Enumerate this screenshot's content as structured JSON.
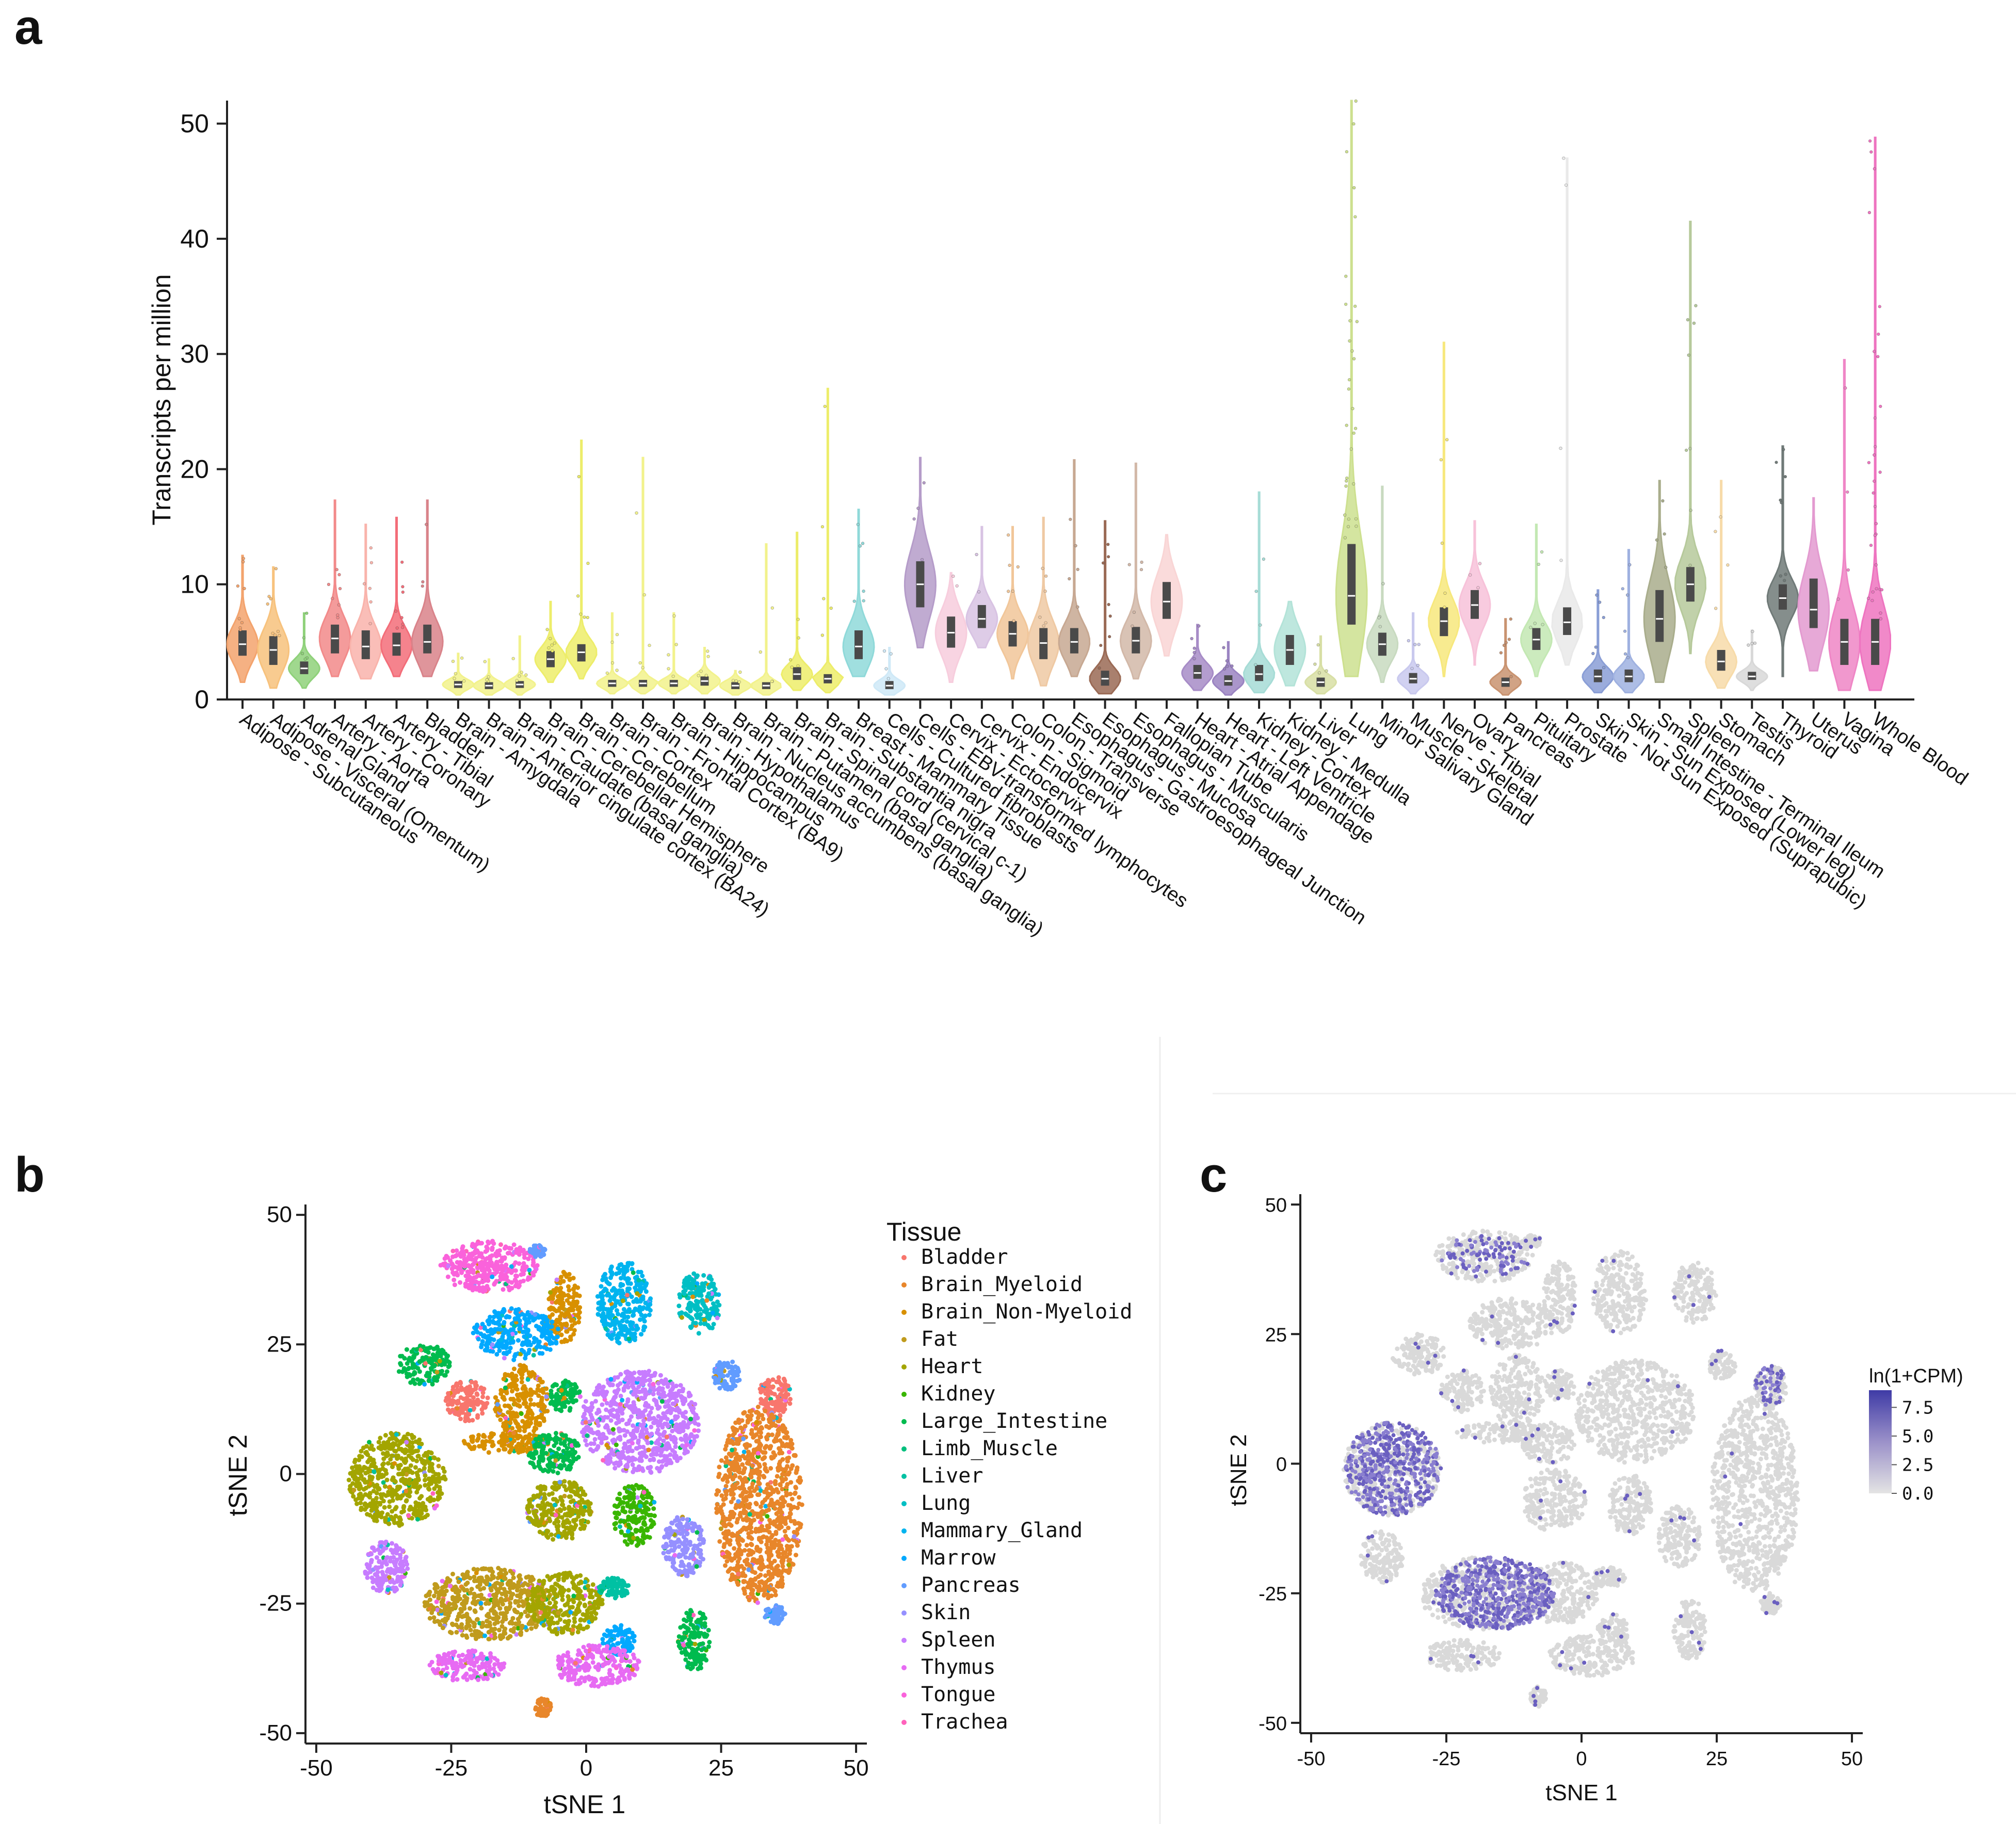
{
  "panel_a": {
    "letter": "a",
    "chart_data": {
      "type": "violin",
      "ylabel": "Transcripts per million",
      "ylim": [
        0,
        52
      ],
      "yticks": [
        0,
        10,
        20,
        30,
        40,
        50
      ],
      "categories": [
        {
          "name": "Adipose - Subcutaneous",
          "median": 4.8,
          "q1": 3.8,
          "q3": 6.0,
          "min": 1.5,
          "max": 12.5,
          "color": "#f3a36d",
          "outliers": 8
        },
        {
          "name": "Adipose - Visceral (Omentum)",
          "median": 4.3,
          "q1": 3.0,
          "q3": 5.5,
          "min": 1.0,
          "max": 11.5,
          "color": "#f7c27d",
          "outliers": 8
        },
        {
          "name": "Adrenal Gland",
          "median": 2.7,
          "q1": 2.2,
          "q3": 3.3,
          "min": 1.0,
          "max": 7.5,
          "color": "#8fd17a",
          "outliers": 5
        },
        {
          "name": "Artery - Aorta",
          "median": 5.3,
          "q1": 4.0,
          "q3": 6.5,
          "min": 2.0,
          "max": 17.3,
          "color": "#f28a8a",
          "outliers": 8
        },
        {
          "name": "Artery - Coronary",
          "median": 4.6,
          "q1": 3.5,
          "q3": 6.0,
          "min": 1.8,
          "max": 15.2,
          "color": "#f9b3ab",
          "outliers": 6
        },
        {
          "name": "Artery - Tibial",
          "median": 4.7,
          "q1": 3.8,
          "q3": 5.8,
          "min": 2.0,
          "max": 15.8,
          "color": "#f36d79",
          "outliers": 8
        },
        {
          "name": "Bladder",
          "median": 5.0,
          "q1": 4.0,
          "q3": 6.5,
          "min": 2.0,
          "max": 17.3,
          "color": "#d9838a",
          "outliers": 3
        },
        {
          "name": "Brain - Amygdala",
          "median": 1.3,
          "q1": 1.0,
          "q3": 1.6,
          "min": 0.4,
          "max": 4.0,
          "color": "#f2f28c",
          "outliers": 5
        },
        {
          "name": "Brain - Anterior cingulate cortex (BA24)",
          "median": 1.2,
          "q1": 0.9,
          "q3": 1.5,
          "min": 0.4,
          "max": 3.5,
          "color": "#f2f28c",
          "outliers": 5
        },
        {
          "name": "Brain - Caudate (basal ganglia)",
          "median": 1.3,
          "q1": 1.0,
          "q3": 1.6,
          "min": 0.4,
          "max": 5.5,
          "color": "#f2f28c",
          "outliers": 5
        },
        {
          "name": "Brain - Cerebellar Hemisphere",
          "median": 3.5,
          "q1": 2.8,
          "q3": 4.2,
          "min": 1.5,
          "max": 8.5,
          "color": "#eded6a",
          "outliers": 6
        },
        {
          "name": "Brain - Cerebellum",
          "median": 4.1,
          "q1": 3.3,
          "q3": 4.8,
          "min": 1.8,
          "max": 22.5,
          "color": "#eded6a",
          "outliers": 6
        },
        {
          "name": "Brain - Cortex",
          "median": 1.4,
          "q1": 1.1,
          "q3": 1.7,
          "min": 0.5,
          "max": 7.5,
          "color": "#f2f28c",
          "outliers": 5
        },
        {
          "name": "Brain - Frontal Cortex (BA9)",
          "median": 1.4,
          "q1": 1.1,
          "q3": 1.7,
          "min": 0.5,
          "max": 21.0,
          "color": "#f2f28c",
          "outliers": 5
        },
        {
          "name": "Brain - Hippocampus",
          "median": 1.4,
          "q1": 1.1,
          "q3": 1.7,
          "min": 0.5,
          "max": 7.5,
          "color": "#f2f28c",
          "outliers": 5
        },
        {
          "name": "Brain - Hypothalamus",
          "median": 1.6,
          "q1": 1.2,
          "q3": 2.0,
          "min": 0.5,
          "max": 4.5,
          "color": "#f2f28c",
          "outliers": 5
        },
        {
          "name": "Brain - Nucleus accumbens (basal ganglia)",
          "median": 1.2,
          "q1": 0.9,
          "q3": 1.5,
          "min": 0.4,
          "max": 2.5,
          "color": "#f2f28c",
          "outliers": 4
        },
        {
          "name": "Brain - Putamen (basal ganglia)",
          "median": 1.2,
          "q1": 0.9,
          "q3": 1.5,
          "min": 0.4,
          "max": 13.5,
          "color": "#f2f28c",
          "outliers": 4
        },
        {
          "name": "Brain - Spinal cord (cervical c-1)",
          "median": 2.2,
          "q1": 1.7,
          "q3": 2.8,
          "min": 0.8,
          "max": 14.5,
          "color": "#eded6a",
          "outliers": 5
        },
        {
          "name": "Brain - Substantia nigra",
          "median": 1.8,
          "q1": 1.4,
          "q3": 2.2,
          "min": 0.6,
          "max": 27.0,
          "color": "#eded6a",
          "outliers": 5
        },
        {
          "name": "Breast - Mammary Tissue",
          "median": 4.6,
          "q1": 3.5,
          "q3": 6.0,
          "min": 2.0,
          "max": 16.5,
          "color": "#8fd9d9",
          "outliers": 6
        },
        {
          "name": "Cells - Cultured fibroblasts",
          "median": 1.2,
          "q1": 0.9,
          "q3": 1.6,
          "min": 0.4,
          "max": 4.5,
          "color": "#cfe9f7",
          "outliers": 4
        },
        {
          "name": "Cells - EBV-transformed lymphocytes",
          "median": 10.0,
          "q1": 8.0,
          "q3": 12.0,
          "min": 4.5,
          "max": 21.0,
          "color": "#b59cc9",
          "outliers": 4
        },
        {
          "name": "Cervix - Ectocervix",
          "median": 5.8,
          "q1": 4.5,
          "q3": 7.2,
          "min": 1.5,
          "max": 11.0,
          "color": "#f7cddd",
          "outliers": 2
        },
        {
          "name": "Cervix - Endocervix",
          "median": 7.0,
          "q1": 6.2,
          "q3": 8.2,
          "min": 4.5,
          "max": 15.0,
          "color": "#d8c3e3",
          "outliers": 2
        },
        {
          "name": "Colon - Sigmoid",
          "median": 5.7,
          "q1": 4.6,
          "q3": 6.8,
          "min": 1.8,
          "max": 15.0,
          "color": "#f1c699",
          "outliers": 6
        },
        {
          "name": "Colon - Transverse",
          "median": 4.9,
          "q1": 3.5,
          "q3": 6.2,
          "min": 1.2,
          "max": 15.8,
          "color": "#efc9a3",
          "outliers": 6
        },
        {
          "name": "Esophagus - Gastroesophageal Junction",
          "median": 5.0,
          "q1": 4.0,
          "q3": 6.2,
          "min": 2.0,
          "max": 20.8,
          "color": "#c7a892",
          "outliers": 5
        },
        {
          "name": "Esophagus - Mucosa",
          "median": 1.8,
          "q1": 1.2,
          "q3": 2.5,
          "min": 0.5,
          "max": 15.5,
          "color": "#9a6a55",
          "outliers": 8
        },
        {
          "name": "Esophagus - Muscularis",
          "median": 5.1,
          "q1": 4.0,
          "q3": 6.3,
          "min": 1.8,
          "max": 20.5,
          "color": "#d2b8a8",
          "outliers": 5
        },
        {
          "name": "Fallopian Tube",
          "median": 8.5,
          "q1": 7.0,
          "q3": 10.2,
          "min": 3.8,
          "max": 14.3,
          "color": "#f9d5d5",
          "outliers": 0
        },
        {
          "name": "Heart - Atrial Appendage",
          "median": 2.3,
          "q1": 1.8,
          "q3": 3.0,
          "min": 0.8,
          "max": 6.5,
          "color": "#a78cc7",
          "outliers": 5
        },
        {
          "name": "Heart - Left Ventricle",
          "median": 1.6,
          "q1": 1.2,
          "q3": 2.1,
          "min": 0.4,
          "max": 5.0,
          "color": "#9b84c2",
          "outliers": 5
        },
        {
          "name": "Kidney - Cortex",
          "median": 2.2,
          "q1": 1.6,
          "q3": 3.0,
          "min": 0.6,
          "max": 18.0,
          "color": "#a6dcd6",
          "outliers": 4
        },
        {
          "name": "Kidney - Medulla",
          "median": 4.3,
          "q1": 3.0,
          "q3": 5.6,
          "min": 1.2,
          "max": 8.5,
          "color": "#b3e3d8",
          "outliers": 0
        },
        {
          "name": "Liver",
          "median": 1.5,
          "q1": 1.1,
          "q3": 1.9,
          "min": 0.5,
          "max": 5.5,
          "color": "#d8dfa5",
          "outliers": 4
        },
        {
          "name": "Lung",
          "median": 9.0,
          "q1": 6.5,
          "q3": 13.5,
          "min": 2.0,
          "max": 52.0,
          "color": "#cde08f",
          "outliers": 30
        },
        {
          "name": "Minor Salivary Gland",
          "median": 4.8,
          "q1": 3.8,
          "q3": 5.8,
          "min": 1.5,
          "max": 18.5,
          "color": "#c8dac0",
          "outliers": 4
        },
        {
          "name": "Muscle - Skeletal",
          "median": 1.8,
          "q1": 1.4,
          "q3": 2.3,
          "min": 0.5,
          "max": 7.5,
          "color": "#c9c9ee",
          "outliers": 5
        },
        {
          "name": "Nerve - Tibial",
          "median": 6.8,
          "q1": 5.5,
          "q3": 8.0,
          "min": 2.0,
          "max": 31.0,
          "color": "#f7e87d",
          "outliers": 5
        },
        {
          "name": "Ovary",
          "median": 8.2,
          "q1": 7.0,
          "q3": 9.5,
          "min": 3.0,
          "max": 15.5,
          "color": "#f7c2d9",
          "outliers": 3
        },
        {
          "name": "Pancreas",
          "median": 1.5,
          "q1": 1.1,
          "q3": 1.9,
          "min": 0.4,
          "max": 7.0,
          "color": "#c99370",
          "outliers": 6
        },
        {
          "name": "Pituitary",
          "median": 5.2,
          "q1": 4.3,
          "q3": 6.2,
          "min": 2.0,
          "max": 15.2,
          "color": "#c3e8b3",
          "outliers": 5
        },
        {
          "name": "Prostate",
          "median": 6.7,
          "q1": 5.6,
          "q3": 8.0,
          "min": 3.0,
          "max": 47.0,
          "color": "#e9e9e9",
          "outliers": 4
        },
        {
          "name": "Skin - Not Sun Exposed (Suprapubic)",
          "median": 2.0,
          "q1": 1.5,
          "q3": 2.6,
          "min": 0.6,
          "max": 9.5,
          "color": "#8a9ed6",
          "outliers": 6
        },
        {
          "name": "Skin - Sun Exposed (Lower leg)",
          "median": 2.0,
          "q1": 1.5,
          "q3": 2.6,
          "min": 0.6,
          "max": 13.0,
          "color": "#9fb1e0",
          "outliers": 6
        },
        {
          "name": "Small Intestine - Terminal Ileum",
          "median": 7.0,
          "q1": 5.0,
          "q3": 9.5,
          "min": 1.5,
          "max": 19.0,
          "color": "#a9ad8c",
          "outliers": 4
        },
        {
          "name": "Spleen",
          "median": 10.0,
          "q1": 8.5,
          "q3": 11.5,
          "min": 4.0,
          "max": 41.5,
          "color": "#b6c99b",
          "outliers": 8
        },
        {
          "name": "Stomach",
          "median": 3.3,
          "q1": 2.5,
          "q3": 4.3,
          "min": 1.0,
          "max": 19.0,
          "color": "#f7dba9",
          "outliers": 4
        },
        {
          "name": "Testis",
          "median": 2.0,
          "q1": 1.7,
          "q3": 2.4,
          "min": 0.8,
          "max": 6.0,
          "color": "#d8d8d8",
          "outliers": 4
        },
        {
          "name": "Thyroid",
          "median": 8.8,
          "q1": 7.8,
          "q3": 10.0,
          "min": 2.0,
          "max": 22.0,
          "color": "#707a78",
          "outliers": 8
        },
        {
          "name": "Uterus",
          "median": 7.8,
          "q1": 6.2,
          "q3": 10.5,
          "min": 2.5,
          "max": 17.5,
          "color": "#e39ad0",
          "outliers": 0
        },
        {
          "name": "Vagina",
          "median": 5.0,
          "q1": 3.0,
          "q3": 7.0,
          "min": 0.8,
          "max": 29.5,
          "color": "#ef86c6",
          "outliers": 4
        },
        {
          "name": "Whole Blood",
          "median": 5.0,
          "q1": 3.0,
          "q3": 7.0,
          "min": 0.8,
          "max": 48.8,
          "color": "#ee74c0",
          "outliers": 30
        }
      ]
    }
  },
  "panel_b": {
    "letter": "b",
    "chart_data": {
      "type": "scatter",
      "xlabel": "tSNE 1",
      "ylabel": "tSNE 2",
      "xlim": [
        -52,
        52
      ],
      "ylim": [
        -52,
        52
      ],
      "xticks": [
        -50,
        -25,
        0,
        25,
        50
      ],
      "yticks": [
        50,
        25,
        0,
        -25,
        -50
      ],
      "legend_title": "Tissue",
      "legend": [
        {
          "name": "Bladder",
          "color": "#f8766d"
        },
        {
          "name": "Brain_Myeloid",
          "color": "#e8862a"
        },
        {
          "name": "Brain_Non-Myeloid",
          "color": "#d89000"
        },
        {
          "name": "Fat",
          "color": "#c09b1d"
        },
        {
          "name": "Heart",
          "color": "#a3a500"
        },
        {
          "name": "Kidney",
          "color": "#39b600"
        },
        {
          "name": "Large_Intestine",
          "color": "#00bb4e"
        },
        {
          "name": "Limb_Muscle",
          "color": "#00bf7d"
        },
        {
          "name": "Liver",
          "color": "#00c1a3"
        },
        {
          "name": "Lung",
          "color": "#00bfc4"
        },
        {
          "name": "Mammary_Gland",
          "color": "#00b4ef"
        },
        {
          "name": "Marrow",
          "color": "#00a9ff"
        },
        {
          "name": "Pancreas",
          "color": "#619cff"
        },
        {
          "name": "Skin",
          "color": "#9590ff"
        },
        {
          "name": "Spleen",
          "color": "#c77cff"
        },
        {
          "name": "Thymus",
          "color": "#e76bf3"
        },
        {
          "name": "Tongue",
          "color": "#fa62db"
        },
        {
          "name": "Trachea",
          "color": "#ff62bc"
        }
      ],
      "clusters": [
        {
          "x": -18,
          "y": 40,
          "rx": 9,
          "ry": 5,
          "tissue": "Tongue"
        },
        {
          "x": -9,
          "y": 43,
          "rx": 1.5,
          "ry": 1.2,
          "tissue": "Pancreas"
        },
        {
          "x": -4,
          "y": 32,
          "rx": 3,
          "ry": 7,
          "tissue": "Brain_Non-Myeloid"
        },
        {
          "x": 7,
          "y": 33,
          "rx": 5,
          "ry": 8,
          "tissue": "Mammary_Gland"
        },
        {
          "x": 21,
          "y": 33,
          "rx": 4,
          "ry": 6,
          "tissue": "Lung"
        },
        {
          "x": -13,
          "y": 27,
          "rx": 8,
          "ry": 5,
          "tissue": "Marrow"
        },
        {
          "x": -30,
          "y": 21,
          "rx": 5,
          "ry": 4,
          "tissue": "Large_Intestine"
        },
        {
          "x": -22,
          "y": 14,
          "rx": 4,
          "ry": 4,
          "tissue": "Bladder"
        },
        {
          "x": -12,
          "y": 14,
          "rx": 5,
          "ry": 7,
          "tissue": "Brain_Non-Myeloid"
        },
        {
          "x": -4,
          "y": 15,
          "rx": 3,
          "ry": 3,
          "tissue": "Large_Intestine"
        },
        {
          "x": 10,
          "y": 10,
          "rx": 11,
          "ry": 10,
          "tissue": "Spleen"
        },
        {
          "x": 26,
          "y": 19,
          "rx": 2.5,
          "ry": 3,
          "tissue": "Pancreas"
        },
        {
          "x": 35,
          "y": 15,
          "rx": 3,
          "ry": 4,
          "tissue": "Bladder"
        },
        {
          "x": -35,
          "y": -1,
          "rx": 9,
          "ry": 9,
          "tissue": "Heart"
        },
        {
          "x": -15,
          "y": 6,
          "rx": 8,
          "ry": 2,
          "tissue": "Brain_Non-Myeloid"
        },
        {
          "x": -6,
          "y": 4,
          "rx": 5,
          "ry": 4,
          "tissue": "Large_Intestine"
        },
        {
          "x": -5,
          "y": -7,
          "rx": 6,
          "ry": 6,
          "tissue": "Heart"
        },
        {
          "x": 9,
          "y": -8,
          "rx": 4,
          "ry": 6,
          "tissue": "Kidney"
        },
        {
          "x": 18,
          "y": -14,
          "rx": 4,
          "ry": 6,
          "tissue": "Skin"
        },
        {
          "x": 32,
          "y": -6,
          "rx": 8,
          "ry": 19,
          "tissue": "Brain_Myeloid"
        },
        {
          "x": -37,
          "y": -18,
          "rx": 4,
          "ry": 5,
          "tissue": "Spleen"
        },
        {
          "x": -18,
          "y": -25,
          "rx": 12,
          "ry": 7,
          "tissue": "Fat"
        },
        {
          "x": -4,
          "y": -25,
          "rx": 7,
          "ry": 6,
          "tissue": "Heart"
        },
        {
          "x": 5,
          "y": -22,
          "rx": 3,
          "ry": 2,
          "tissue": "Liver"
        },
        {
          "x": 6,
          "y": -32,
          "rx": 3,
          "ry": 3,
          "tissue": "Marrow"
        },
        {
          "x": 20,
          "y": -32,
          "rx": 3,
          "ry": 6,
          "tissue": "Large_Intestine"
        },
        {
          "x": -22,
          "y": -37,
          "rx": 7,
          "ry": 3,
          "tissue": "Thymus"
        },
        {
          "x": 2,
          "y": -37,
          "rx": 8,
          "ry": 4,
          "tissue": "Thymus"
        },
        {
          "x": -8,
          "y": -45,
          "rx": 1.5,
          "ry": 2,
          "tissue": "Brain_Myeloid"
        },
        {
          "x": 35,
          "y": -27,
          "rx": 2,
          "ry": 2,
          "tissue": "Pancreas"
        }
      ]
    }
  },
  "panel_c": {
    "letter": "c",
    "chart_data": {
      "type": "scatter",
      "xlabel": "tSNE 1",
      "ylabel": "tSNE 2",
      "xlim": [
        -52,
        52
      ],
      "ylim": [
        -52,
        52
      ],
      "xticks": [
        -50,
        -25,
        0,
        25,
        50
      ],
      "yticks": [
        50,
        25,
        0,
        -25,
        -50
      ],
      "colorbar_title": "ln(1+CPM)",
      "colorbar_ticks": [
        "7.5",
        "5.0",
        "2.5",
        "0.0"
      ],
      "colorbar_range": [
        0,
        9
      ],
      "base_color": "#d9d9d9",
      "high_color": "#3f3ba6",
      "enriched_regions": [
        {
          "x": -35,
          "y": -1,
          "rx": 9,
          "ry": 9,
          "level": 0.6
        },
        {
          "x": -16,
          "y": -25,
          "rx": 11,
          "ry": 7,
          "level": 0.75
        },
        {
          "x": -18,
          "y": 40,
          "rx": 8,
          "ry": 4,
          "level": 0.3
        },
        {
          "x": 35,
          "y": 15,
          "rx": 3,
          "ry": 4,
          "level": 0.4
        }
      ]
    }
  }
}
